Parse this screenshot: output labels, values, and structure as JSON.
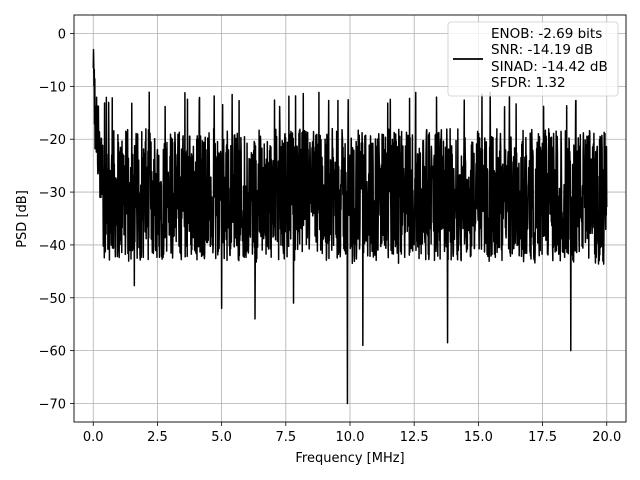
{
  "chart_data": {
    "type": "line",
    "xlabel": "Frequency [MHz]",
    "ylabel": "PSD [dB]",
    "xlim": [
      -0.75,
      20.75
    ],
    "ylim": [
      -73.5,
      3.5
    ],
    "xticks": [
      0.0,
      2.5,
      5.0,
      7.5,
      10.0,
      12.5,
      15.0,
      17.5,
      20.0
    ],
    "xtick_labels": [
      "0.0",
      "2.5",
      "5.0",
      "7.5",
      "10.0",
      "12.5",
      "15.0",
      "17.5",
      "20.0"
    ],
    "yticks": [
      0,
      -10,
      -20,
      -30,
      -40,
      -50,
      -60,
      -70
    ],
    "ytick_labels": [
      "0",
      "−10",
      "−20",
      "−30",
      "−40",
      "−50",
      "−60",
      "−70"
    ],
    "grid": true,
    "legend_position": "top-right",
    "legend_lines": [
      "ENOB: -2.69 bits",
      "SNR: -14.19 dB",
      "SINAD: -14.42 dB",
      "SFDR: 1.32"
    ],
    "line_color": "#000000",
    "series": [
      {
        "x_range": [
          0,
          20
        ],
        "points": 2000,
        "envelope_upper_approx": -17,
        "envelope_lower_approx": -38,
        "peak": {
          "x": 0.0,
          "y": 0
        },
        "notable_minima": [
          {
            "x": 1.6,
            "y": -47.7
          },
          {
            "x": 5.0,
            "y": -52
          },
          {
            "x": 6.3,
            "y": -54
          },
          {
            "x": 7.8,
            "y": -51
          },
          {
            "x": 9.9,
            "y": -70
          },
          {
            "x": 10.5,
            "y": -59
          },
          {
            "x": 13.8,
            "y": -58.5
          },
          {
            "x": 18.6,
            "y": -60
          }
        ]
      }
    ]
  }
}
